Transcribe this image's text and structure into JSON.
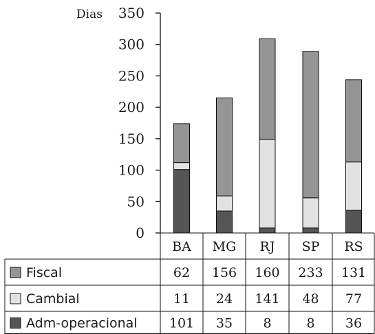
{
  "chart_data": {
    "type": "bar",
    "stacked": true,
    "y_unit_label": "Dias",
    "ylim": [
      0,
      350
    ],
    "y_ticks": [
      0,
      50,
      100,
      150,
      200,
      250,
      300,
      350
    ],
    "categories": [
      "BA",
      "MG",
      "RJ",
      "SP",
      "RS"
    ],
    "series": [
      {
        "name": "Adm-operacional",
        "color": "#555555",
        "values": [
          101,
          35,
          8,
          8,
          36
        ]
      },
      {
        "name": "Cambial",
        "color": "#e2e2e2",
        "values": [
          11,
          24,
          141,
          48,
          77
        ]
      },
      {
        "name": "Fiscal",
        "color": "#959595",
        "values": [
          62,
          156,
          160,
          233,
          131
        ]
      }
    ],
    "table_row_order": [
      "Fiscal",
      "Cambial",
      "Adm-operacional"
    ],
    "grid": false,
    "legend": "data table below chart"
  }
}
